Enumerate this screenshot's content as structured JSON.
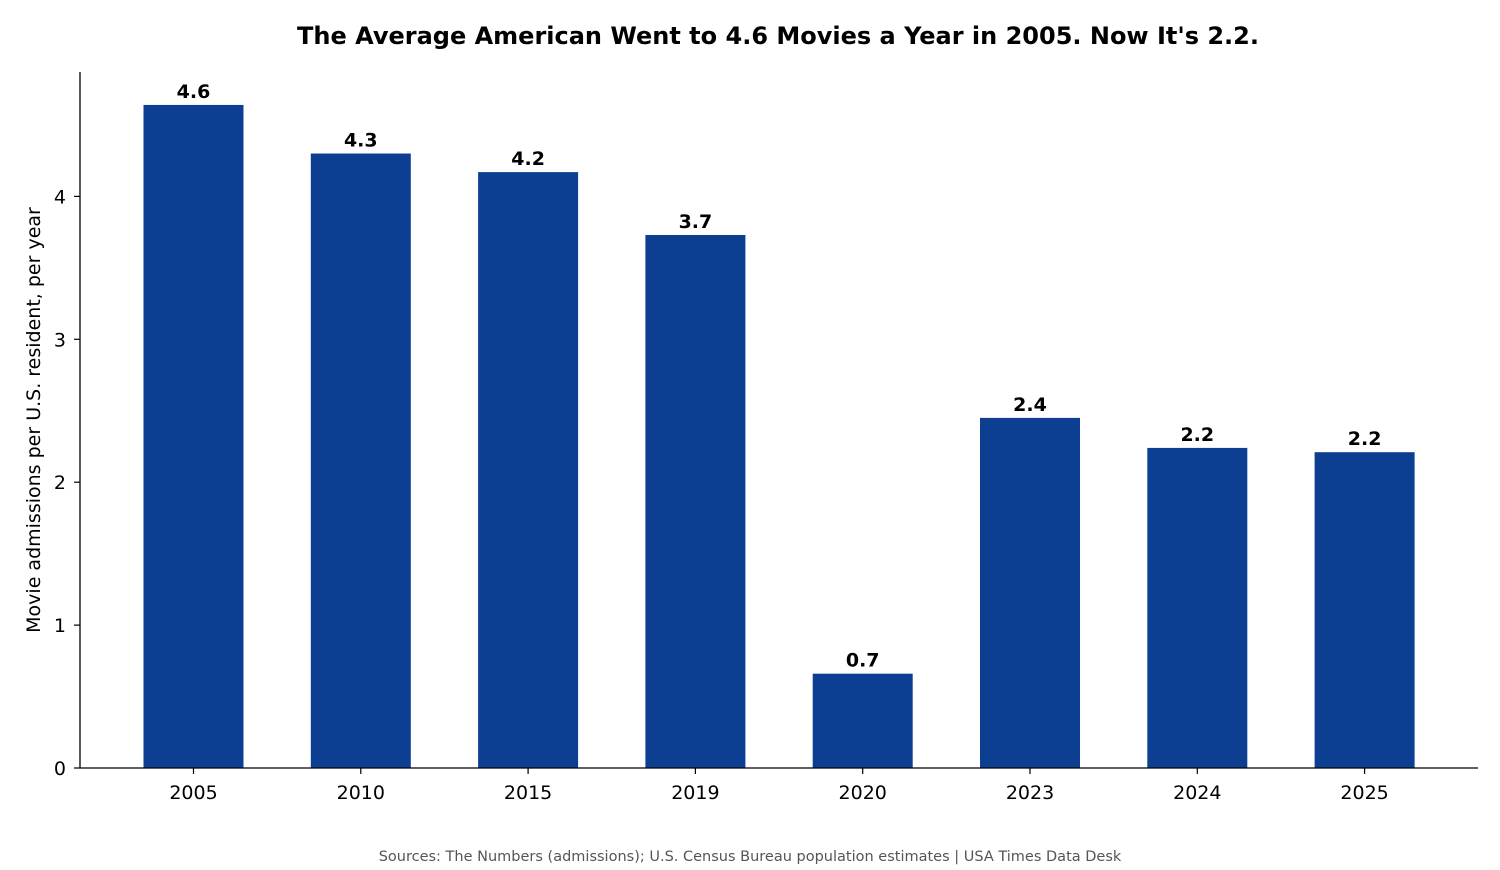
{
  "chart_data": {
    "type": "bar",
    "title": "The Average American Went to 4.6 Movies a Year in 2005. Now It's 2.2.",
    "xlabel": "",
    "ylabel": "Movie admissions per U.S. resident, per year",
    "categories": [
      "2005",
      "2010",
      "2015",
      "2019",
      "2020",
      "2023",
      "2024",
      "2025"
    ],
    "values": [
      4.64,
      4.3,
      4.17,
      3.73,
      0.66,
      2.45,
      2.24,
      2.21
    ],
    "data_labels": [
      "4.6",
      "4.3",
      "4.2",
      "3.7",
      "0.7",
      "2.4",
      "2.2",
      "2.2"
    ],
    "ylim": [
      0,
      4.87
    ],
    "yticks": [
      0,
      1,
      2,
      3,
      4
    ],
    "ytick_labels": [
      "0",
      "1",
      "2",
      "3",
      "4"
    ],
    "bar_color": "#0c3f91",
    "grid": false,
    "legend": "none"
  },
  "source_note": "Sources: The Numbers (admissions); U.S. Census Bureau population estimates | USA Times Data Desk"
}
